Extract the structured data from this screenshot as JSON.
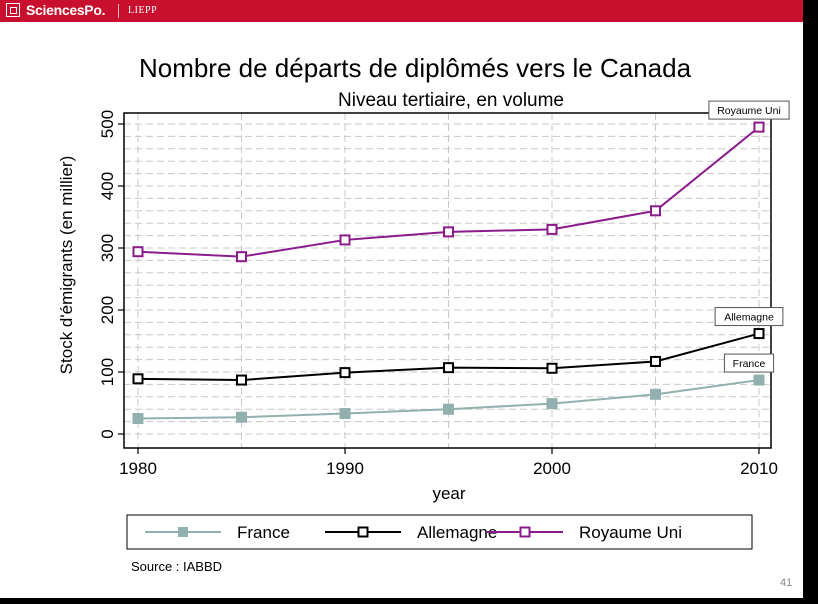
{
  "header": {
    "brand": "SciencesPo.",
    "lab": "LIEPP"
  },
  "page_number": "41",
  "colors": {
    "brand_red": "#c8102e",
    "france": "#92b0ae",
    "allemagne": "#000000",
    "royaume_uni": "#8b1a8b"
  },
  "chart_data": {
    "type": "line",
    "title": "Nombre de départs de diplômés vers le Canada",
    "subtitle": "Niveau tertiaire, en volume",
    "xlabel": "year",
    "ylabel": "Stock d'émigrants (en millier)",
    "xlim": [
      1980,
      2010
    ],
    "ylim": [
      0,
      500
    ],
    "xticks": [
      1980,
      1990,
      2000,
      2010
    ],
    "yticks": [
      0,
      100,
      200,
      300,
      400,
      500
    ],
    "x": [
      1980,
      1985,
      1990,
      1995,
      2000,
      2005,
      2010
    ],
    "series": [
      {
        "name": "France",
        "color": "#92b0ae",
        "values": [
          25,
          27,
          33,
          40,
          49,
          64,
          87
        ]
      },
      {
        "name": "Allemagne",
        "color": "#000000",
        "values": [
          89,
          87,
          99,
          107,
          106,
          117,
          162
        ]
      },
      {
        "name": "Royaume Uni",
        "color": "#8b1a8b",
        "values": [
          294,
          286,
          313,
          326,
          330,
          360,
          495
        ]
      }
    ],
    "end_labels": [
      "France",
      "Allemagne",
      "Royaume Uni"
    ],
    "legend": "bottom",
    "grid": true,
    "source": "Source : IABBD"
  }
}
